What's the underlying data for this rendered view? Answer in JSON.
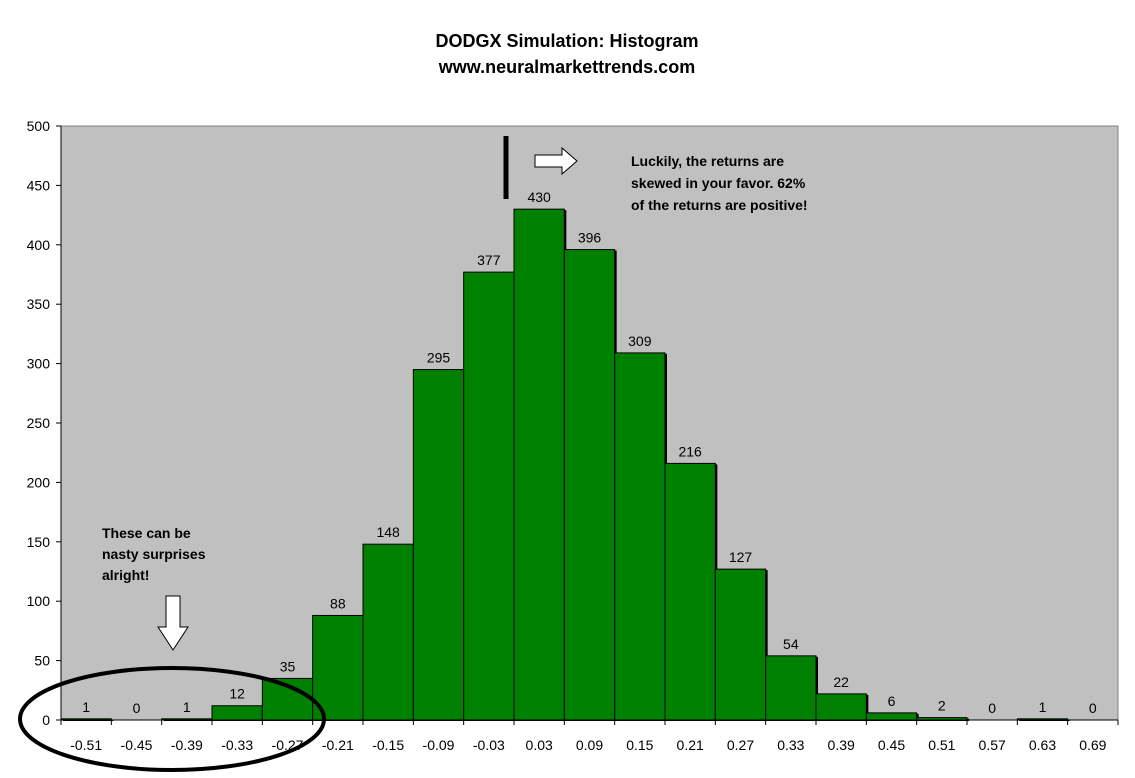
{
  "chart_data": {
    "type": "bar",
    "title": "DODGX Simulation: Histogram",
    "subtitle": "www.neuralmarkettrends.com",
    "xlabel": "",
    "ylabel": "",
    "ylim": [
      0,
      500
    ],
    "yticks": [
      0,
      50,
      100,
      150,
      200,
      250,
      300,
      350,
      400,
      450,
      500
    ],
    "grid": false,
    "legend": "none",
    "categories": [
      "-0.51",
      "-0.45",
      "-0.39",
      "-0.33",
      "-0.27",
      "-0.21",
      "-0.15",
      "-0.09",
      "-0.03",
      "0.03",
      "0.09",
      "0.15",
      "0.21",
      "0.27",
      "0.33",
      "0.39",
      "0.45",
      "0.51",
      "0.57",
      "0.63",
      "0.69"
    ],
    "values": [
      1,
      0,
      1,
      12,
      35,
      88,
      148,
      295,
      377,
      430,
      396,
      309,
      216,
      127,
      54,
      22,
      6,
      2,
      0,
      1,
      0
    ],
    "colors": {
      "bar": "#008000",
      "plot_background": "#c0c0c0",
      "axis": "#808080"
    },
    "annotations": {
      "right_note": [
        "Luckily, the returns are",
        "skewed in your favor.  62%",
        "of the returns are positive!"
      ],
      "left_note": [
        "These can be",
        "nasty surprises",
        "alright!"
      ]
    }
  }
}
